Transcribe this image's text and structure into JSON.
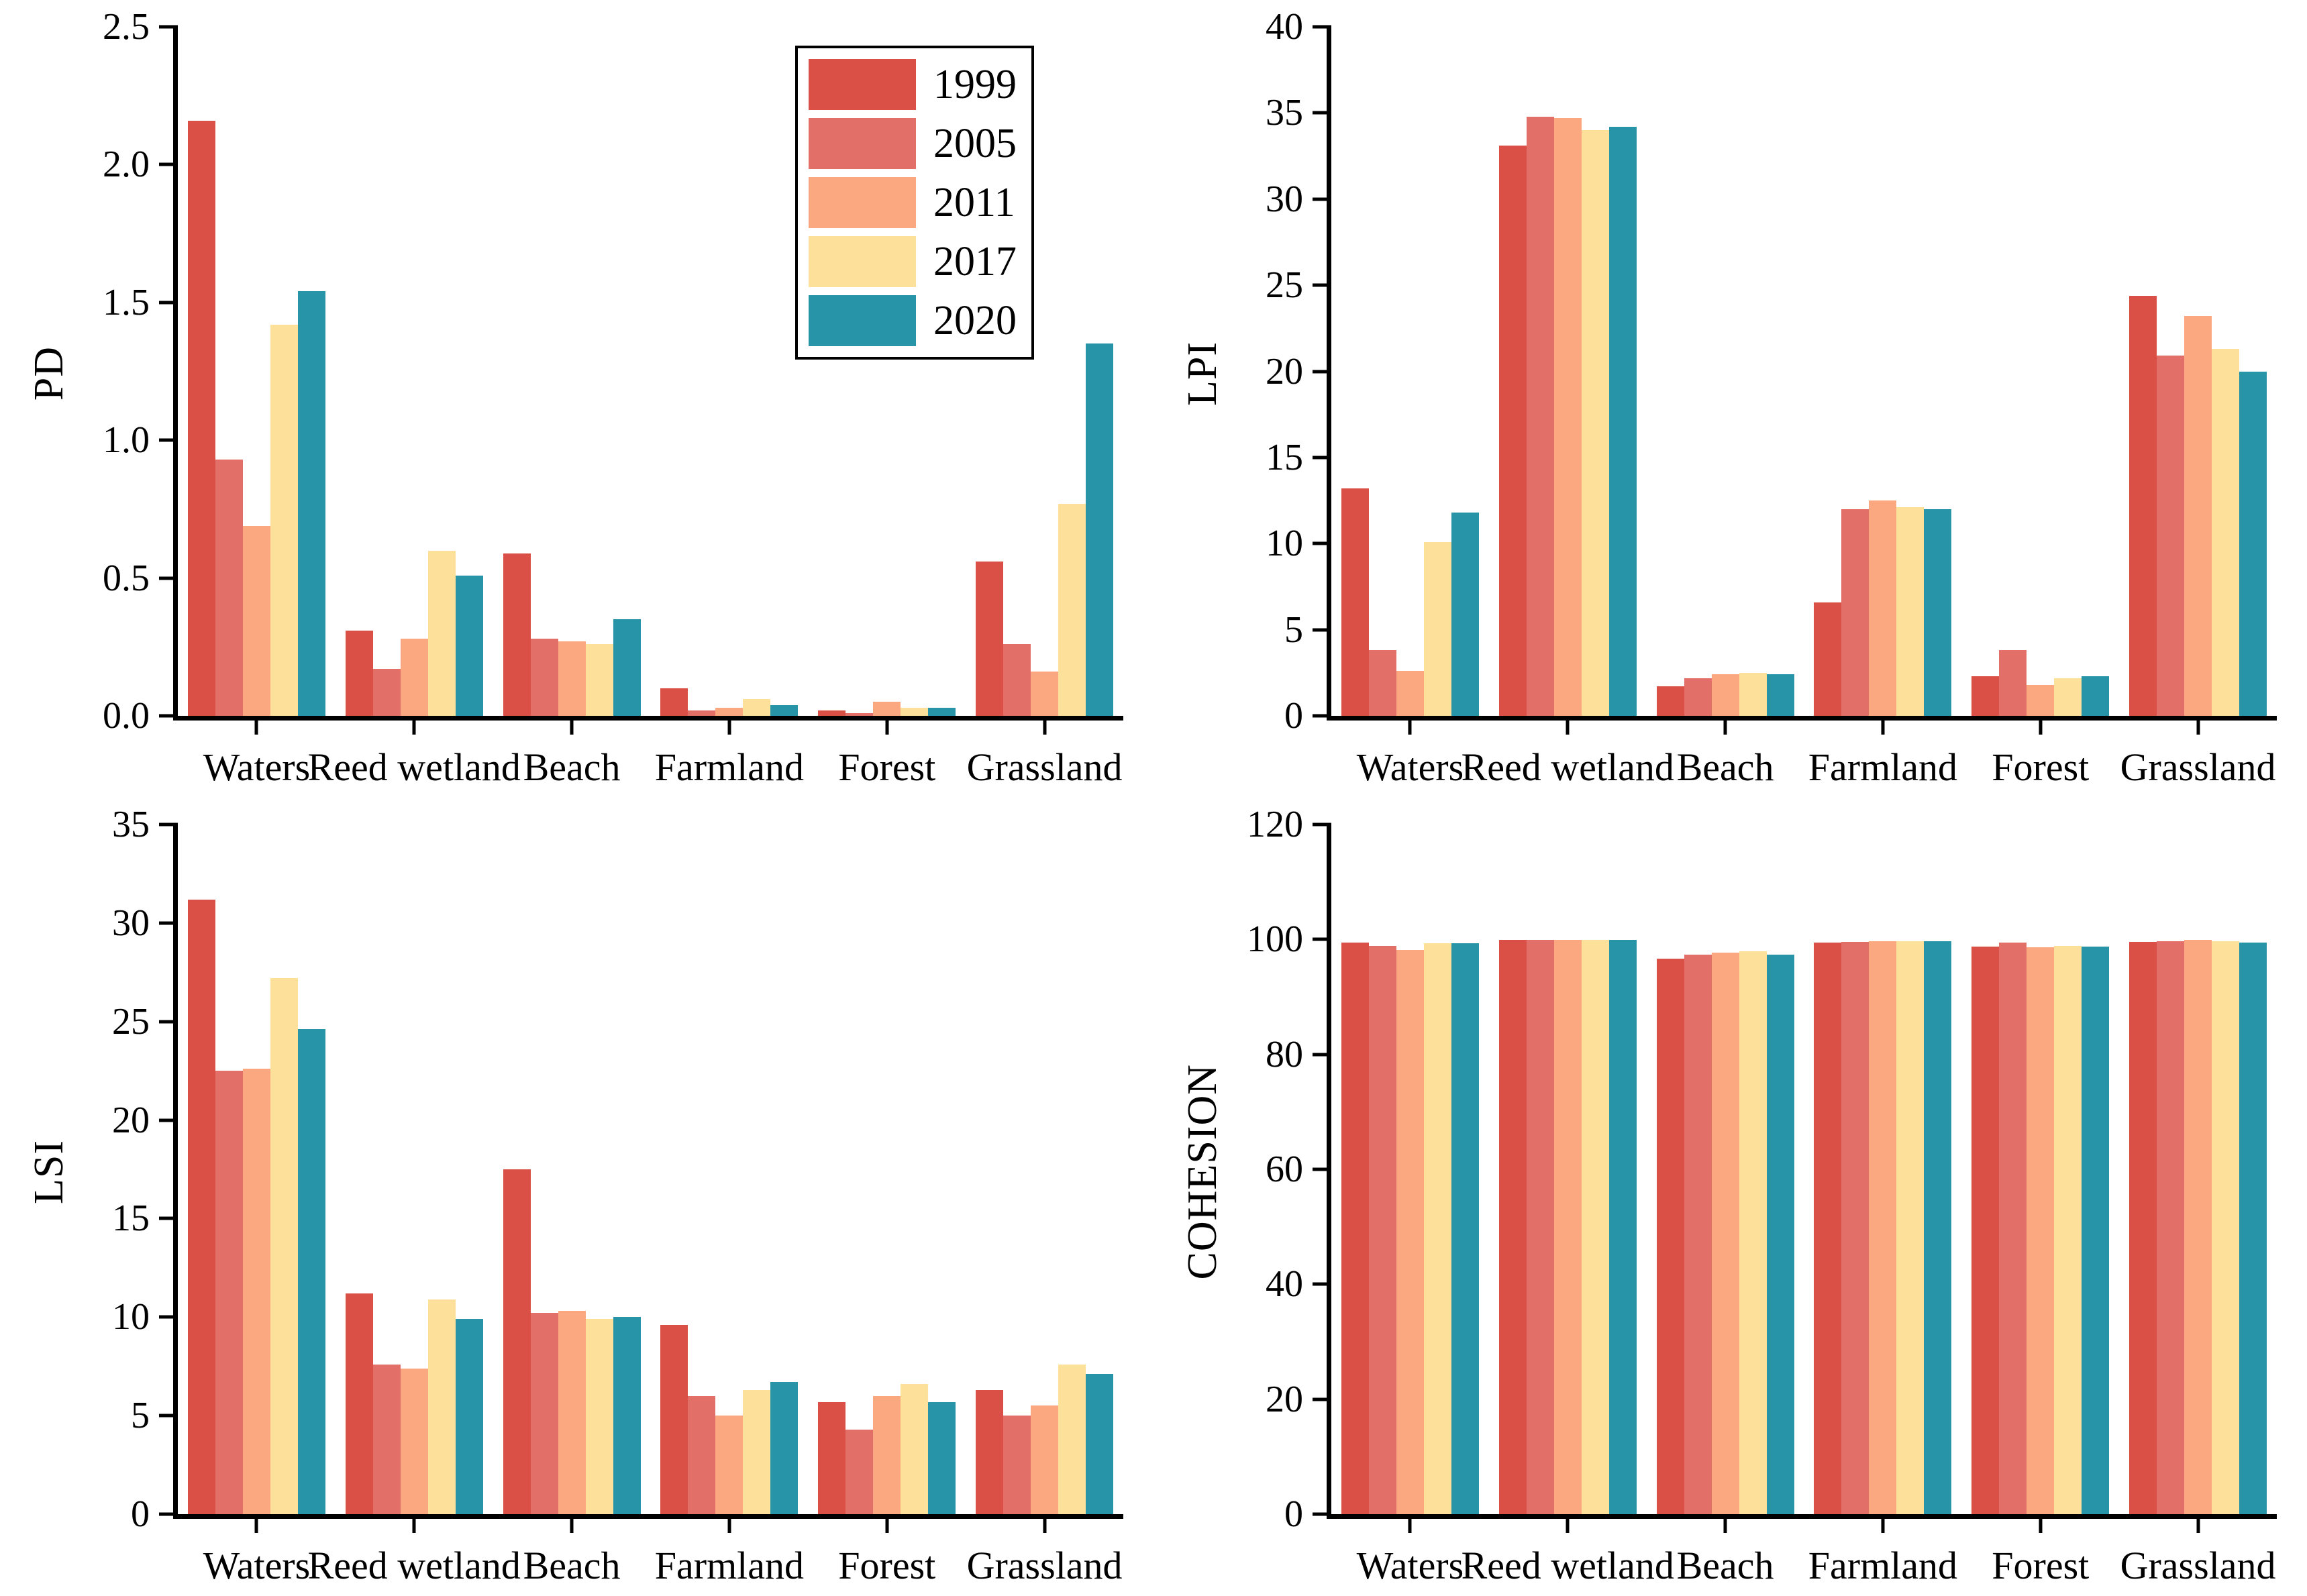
{
  "legend": {
    "years": [
      "1999",
      "2005",
      "2011",
      "2017",
      "2020"
    ],
    "colors": [
      "#DB5046",
      "#E27069",
      "#FBA77F",
      "#FDE19B",
      "#2794A8"
    ],
    "position": "inside top-right area of PD panel"
  },
  "chart_data": [
    {
      "type": "bar",
      "ylabel": "PD",
      "categories": [
        "Waters",
        "Reed wetland",
        "Beach",
        "Farmland",
        "Forest",
        "Grassland"
      ],
      "series": [
        {
          "name": "1999",
          "color": "#DB5046",
          "values": [
            2.16,
            0.31,
            0.59,
            0.1,
            0.02,
            0.56
          ]
        },
        {
          "name": "2005",
          "color": "#E27069",
          "values": [
            0.93,
            0.17,
            0.28,
            0.02,
            0.01,
            0.26
          ]
        },
        {
          "name": "2011",
          "color": "#FBA77F",
          "values": [
            0.69,
            0.28,
            0.27,
            0.03,
            0.05,
            0.16
          ]
        },
        {
          "name": "2017",
          "color": "#FDE19B",
          "values": [
            1.42,
            0.6,
            0.26,
            0.06,
            0.03,
            0.77
          ]
        },
        {
          "name": "2020",
          "color": "#2794A8",
          "values": [
            1.54,
            0.51,
            0.35,
            0.04,
            0.03,
            1.35
          ]
        }
      ],
      "ylim": [
        0,
        2.5
      ],
      "yticks": [
        0,
        0.5,
        1.0,
        1.5,
        2.0,
        2.5
      ],
      "ytick_labels": [
        "0.0",
        "0.5",
        "1.0",
        "1.5",
        "2.0",
        "2.5"
      ],
      "grid": false,
      "legend_position": "top-right-in-plot"
    },
    {
      "type": "bar",
      "ylabel": "LPI",
      "categories": [
        "Waters",
        "Reed wetland",
        "Beach",
        "Farmland",
        "Forest",
        "Grassland"
      ],
      "series": [
        {
          "name": "1999",
          "color": "#DB5046",
          "values": [
            13.2,
            33.1,
            1.7,
            6.6,
            2.3,
            24.4
          ]
        },
        {
          "name": "2005",
          "color": "#E27069",
          "values": [
            3.8,
            34.8,
            2.2,
            12.0,
            3.8,
            20.9
          ]
        },
        {
          "name": "2011",
          "color": "#FBA77F",
          "values": [
            2.6,
            34.7,
            2.4,
            12.5,
            1.8,
            23.2
          ]
        },
        {
          "name": "2017",
          "color": "#FDE19B",
          "values": [
            10.1,
            34.0,
            2.5,
            12.1,
            2.2,
            21.3
          ]
        },
        {
          "name": "2020",
          "color": "#2794A8",
          "values": [
            11.8,
            34.2,
            2.4,
            12.0,
            2.3,
            20.0
          ]
        }
      ],
      "ylim": [
        0,
        40
      ],
      "yticks": [
        0,
        5,
        10,
        15,
        20,
        25,
        30,
        35,
        40
      ],
      "ytick_labels": [
        "0",
        "5",
        "10",
        "15",
        "20",
        "25",
        "30",
        "35",
        "40"
      ],
      "grid": false
    },
    {
      "type": "bar",
      "ylabel": "LSI",
      "categories": [
        "Waters",
        "Reed wetland",
        "Beach",
        "Farmland",
        "Forest",
        "Grassland"
      ],
      "series": [
        {
          "name": "1999",
          "color": "#DB5046",
          "values": [
            31.2,
            11.2,
            17.5,
            9.6,
            5.7,
            6.3
          ]
        },
        {
          "name": "2005",
          "color": "#E27069",
          "values": [
            22.5,
            7.6,
            10.2,
            6.0,
            4.3,
            5.0
          ]
        },
        {
          "name": "2011",
          "color": "#FBA77F",
          "values": [
            22.6,
            7.4,
            10.3,
            5.0,
            6.0,
            5.5
          ]
        },
        {
          "name": "2017",
          "color": "#FDE19B",
          "values": [
            27.2,
            10.9,
            9.9,
            6.3,
            6.6,
            7.6
          ]
        },
        {
          "name": "2020",
          "color": "#2794A8",
          "values": [
            24.6,
            9.9,
            10.0,
            6.7,
            5.7,
            7.1
          ]
        }
      ],
      "ylim": [
        0,
        35
      ],
      "yticks": [
        0,
        5,
        10,
        15,
        20,
        25,
        30,
        35
      ],
      "ytick_labels": [
        "0",
        "5",
        "10",
        "15",
        "20",
        "25",
        "30",
        "35"
      ],
      "grid": false
    },
    {
      "type": "bar",
      "ylabel": "COHESION",
      "categories": [
        "Waters",
        "Reed wetland",
        "Beach",
        "Farmland",
        "Forest",
        "Grassland"
      ],
      "series": [
        {
          "name": "1999",
          "color": "#DB5046",
          "values": [
            99.4,
            99.9,
            96.6,
            99.4,
            98.8,
            99.6
          ]
        },
        {
          "name": "2005",
          "color": "#E27069",
          "values": [
            98.9,
            99.9,
            97.4,
            99.6,
            99.5,
            99.7
          ]
        },
        {
          "name": "2011",
          "color": "#FBA77F",
          "values": [
            98.2,
            99.9,
            97.7,
            99.7,
            98.6,
            99.9
          ]
        },
        {
          "name": "2017",
          "color": "#FDE19B",
          "values": [
            99.3,
            99.9,
            97.9,
            99.7,
            98.9,
            99.7
          ]
        },
        {
          "name": "2020",
          "color": "#2794A8",
          "values": [
            99.3,
            99.9,
            97.3,
            99.7,
            98.8,
            99.5
          ]
        }
      ],
      "ylim": [
        0,
        120
      ],
      "yticks": [
        0,
        20,
        40,
        60,
        80,
        100,
        120
      ],
      "ytick_labels": [
        "0",
        "20",
        "40",
        "60",
        "80",
        "100",
        "120"
      ],
      "grid": false
    }
  ]
}
